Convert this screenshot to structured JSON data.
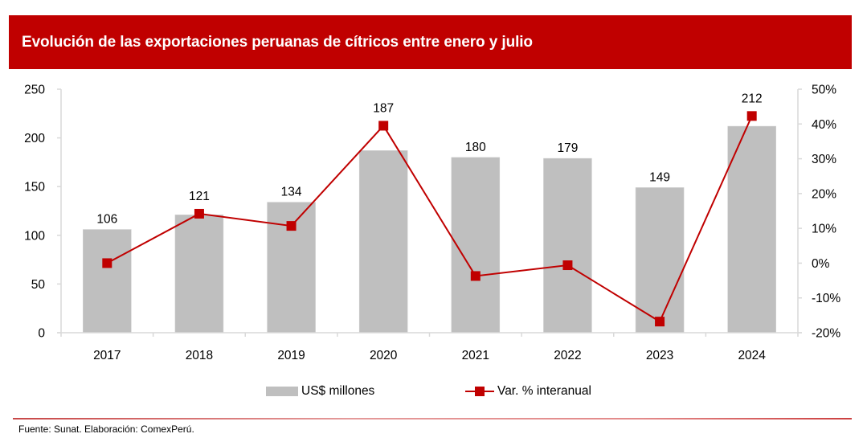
{
  "header": {
    "title": "Evolución de las exportaciones peruanas de cítricos entre enero y julio"
  },
  "colors": {
    "header_bg": "#c00000",
    "bar": "#bfbfbf",
    "line": "#c00000",
    "axis": "#d9d9d9"
  },
  "chart_data": {
    "type": "bar+line",
    "title": "Evolución de las exportaciones peruanas de cítricos entre enero y julio",
    "categories": [
      "2017",
      "2018",
      "2019",
      "2020",
      "2021",
      "2022",
      "2023",
      "2024"
    ],
    "series": [
      {
        "name": "US$ millones",
        "type": "bar",
        "axis": "left",
        "values": [
          106,
          121,
          134,
          187,
          180,
          179,
          149,
          212
        ],
        "labels": [
          "106",
          "121",
          "134",
          "187",
          "180",
          "179",
          "149",
          "212"
        ]
      },
      {
        "name": "Var. % interanual",
        "type": "line",
        "axis": "right",
        "marker": "square",
        "values": [
          0.0,
          14.2,
          10.7,
          39.5,
          -3.7,
          -0.6,
          -16.8,
          42.3
        ]
      }
    ],
    "y_left": {
      "range": [
        0,
        250
      ],
      "ticks": [
        0,
        50,
        100,
        150,
        200,
        250
      ],
      "tick_labels": [
        "0",
        "50",
        "100",
        "150",
        "200",
        "250"
      ]
    },
    "y_right": {
      "range": [
        -20,
        50
      ],
      "ticks": [
        -20,
        -10,
        0,
        10,
        20,
        30,
        40,
        50
      ],
      "tick_labels": [
        "-20%",
        "-10%",
        "0%",
        "10%",
        "20%",
        "30%",
        "40%",
        "50%"
      ]
    },
    "xlabel": "",
    "ylabel": "",
    "grid": false,
    "legend_position": "bottom"
  },
  "legend": {
    "bar_label": "US$ millones",
    "line_label": "Var. % interanual"
  },
  "footer": {
    "source": "Fuente: Sunat. Elaboración: ComexPerú."
  }
}
